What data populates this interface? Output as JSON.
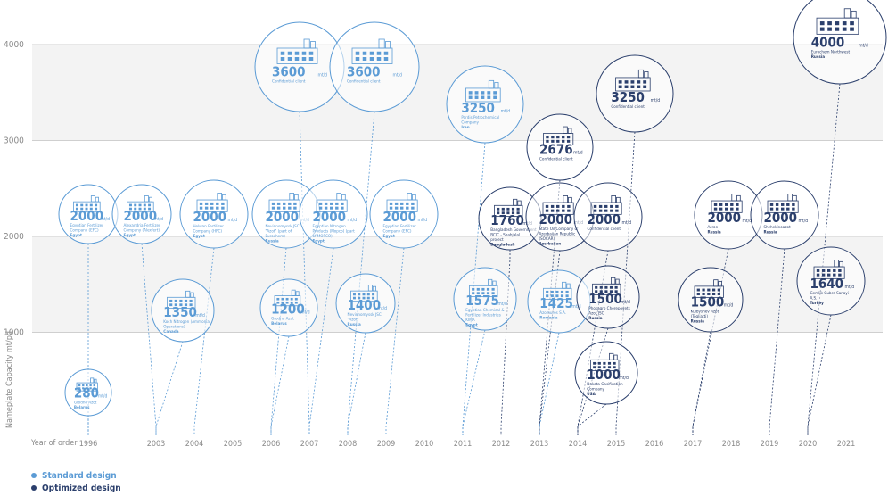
{
  "legend": {
    "standard": "Standard design",
    "optimized": "Optimized design"
  },
  "colors": {
    "standard": "#5b9bd5",
    "optimized": "#2b3f6c",
    "band": "#f3f3f3",
    "grid": "#cfcfcf"
  },
  "chart_data": {
    "type": "scatter",
    "ylabel": "Nameplate Capacity mt/pd",
    "xlabel": "Year of order",
    "ylim": [
      0,
      4000
    ],
    "yticks": [
      1000,
      2000,
      3000,
      4000
    ],
    "years": [
      "1996",
      "2003",
      "2004",
      "2005",
      "2006",
      "2007",
      "2008",
      "2009",
      "2010",
      "2011",
      "2012",
      "2013",
      "2014",
      "2015",
      "2016",
      "2017",
      "2018",
      "2019",
      "2020",
      "2021"
    ],
    "unit": "mt/d",
    "points": [
      {
        "year": "1996",
        "value": 280,
        "label": "280",
        "design": "standard",
        "client": "Grodno Azot",
        "country": "Belarus"
      },
      {
        "year": "1996",
        "value": 2000,
        "label": "2000",
        "design": "standard",
        "client": "Egyptian Fertilizer Company (EFC)",
        "country": "Egypt"
      },
      {
        "year": "2003",
        "value": 2000,
        "label": "2000",
        "design": "standard",
        "client": "Alexandria Fertilizer Company (Alexfert)",
        "country": "Egypt"
      },
      {
        "year": "2003",
        "value": 1350,
        "label": "1350",
        "design": "standard",
        "client": "Koch Nitrogen (Ammonia Operations)",
        "country": "Canada"
      },
      {
        "year": "2004",
        "value": 2000,
        "label": "2000",
        "design": "standard",
        "client": "Helwan Fertilizer Company (HFC)",
        "country": "Egypt"
      },
      {
        "year": "2006",
        "value": 2000,
        "label": "2000",
        "design": "standard",
        "client": "Nevinnomyssk JSC \"Azot\" (part of Eurochem)",
        "country": "Russia"
      },
      {
        "year": "2006",
        "value": 1200,
        "label": "1200",
        "design": "standard",
        "client": "Grodno Azot",
        "country": "Belarus"
      },
      {
        "year": "2007",
        "value": 3600,
        "label": "3600",
        "design": "standard",
        "client": "Confidential client",
        "country": ""
      },
      {
        "year": "2007",
        "value": 2000,
        "label": "2000",
        "design": "standard",
        "client": "Egyptian Nitrogen Products (Mopco) (part of MOPCO)",
        "country": "Egypt"
      },
      {
        "year": "2008",
        "value": 3600,
        "label": "3600",
        "design": "standard",
        "client": "Confidential client",
        "country": ""
      },
      {
        "year": "2008",
        "value": 1400,
        "label": "1400",
        "design": "standard",
        "client": "Nevinnomyssk JSC \"Azot\"",
        "country": "Russia"
      },
      {
        "year": "2009",
        "value": 2000,
        "label": "2000",
        "design": "standard",
        "client": "Egyptian Fertilizer Company (EFC)",
        "country": "Egypt"
      },
      {
        "year": "2011",
        "value": 3250,
        "label": "3250",
        "design": "standard",
        "client": "Pardis Petrochemical Company",
        "country": "Iran"
      },
      {
        "year": "2011",
        "value": 1575,
        "label": "1575",
        "design": "standard",
        "client": "Egyptian Chemical & Fertilizer Industries KIMA",
        "country": "Egypt"
      },
      {
        "year": "2012",
        "value": 1760,
        "label": "1760",
        "design": "optimized",
        "client": "Bangladesh Government BCIC - Shahjalal project",
        "country": "Bangladesh"
      },
      {
        "year": "2013",
        "value": 2676,
        "label": "2676",
        "design": "optimized",
        "client": "Confidential client",
        "country": ""
      },
      {
        "year": "2013",
        "value": 2000,
        "label": "2000",
        "design": "optimized",
        "client": "State Oil Company of Azerbaijan Republic (SOCAR)",
        "country": "Azerbaijan"
      },
      {
        "year": "2013",
        "value": 1425,
        "label": "1425",
        "design": "standard",
        "client": "Azomures S.A.",
        "country": "Romania"
      },
      {
        "year": "2014",
        "value": 2000,
        "label": "2000",
        "design": "optimized",
        "client": "Confidential client",
        "country": ""
      },
      {
        "year": "2014",
        "value": 1500,
        "label": "1500",
        "design": "optimized",
        "client": "Phosagro Cherepovets Azot JSC",
        "country": "Russia"
      },
      {
        "year": "2014",
        "value": 1000,
        "label": "1000",
        "design": "optimized",
        "client": "Dakota Gasification Company",
        "country": "USA"
      },
      {
        "year": "2015",
        "value": 3250,
        "label": "3250",
        "design": "optimized",
        "client": "Confidential client",
        "country": ""
      },
      {
        "year": "2017",
        "value": 2000,
        "label": "2000",
        "design": "optimized",
        "client": "Acron",
        "country": "Russia"
      },
      {
        "year": "2017",
        "value": 1500,
        "label": "1500",
        "design": "optimized",
        "client": "Kuibyshev Azot (Togliatti)",
        "country": "Russia"
      },
      {
        "year": "2019",
        "value": 2000,
        "label": "2000",
        "design": "optimized",
        "client": "Shchekinoazot",
        "country": "Russia"
      },
      {
        "year": "2020",
        "value": 4000,
        "label": "4000",
        "design": "optimized",
        "client": "Eurochem Northwest",
        "country": "Russia"
      },
      {
        "year": "2020",
        "value": 1640,
        "label": "1640",
        "design": "optimized",
        "client": "Gemlik Gubre Sanayi A.S.",
        "country": "Turkey"
      }
    ]
  }
}
